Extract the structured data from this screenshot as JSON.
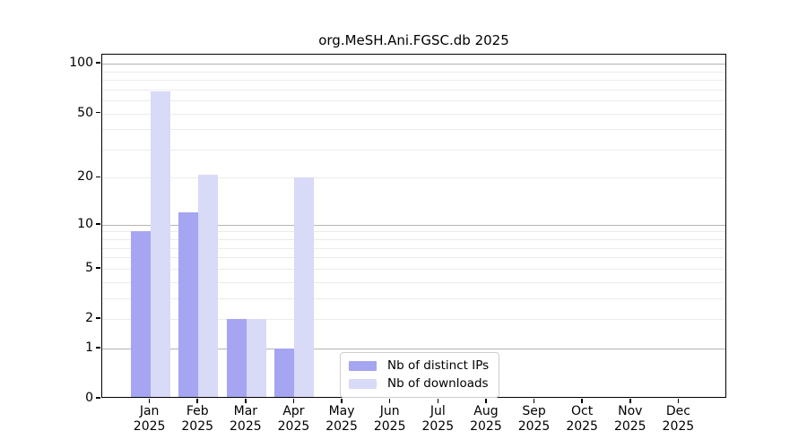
{
  "title": "org.MeSH.Ani.FGSC.db 2025",
  "legend": {
    "items": [
      {
        "label": "Nb of distinct IPs",
        "color": "#a5a5f2"
      },
      {
        "label": "Nb of downloads",
        "color": "#d9d9f8"
      }
    ]
  },
  "chart_data": {
    "type": "bar",
    "title": "org.MeSH.Ani.FGSC.db 2025",
    "xlabel": "",
    "ylabel": "",
    "x_year": "2025",
    "categories": [
      "Jan",
      "Feb",
      "Mar",
      "Apr",
      "May",
      "Jun",
      "Jul",
      "Aug",
      "Sep",
      "Oct",
      "Nov",
      "Dec"
    ],
    "series": [
      {
        "name": "Nb of distinct IPs",
        "color": "#a5a5f2",
        "values": [
          9,
          12,
          2,
          1,
          0,
          0,
          0,
          0,
          0,
          0,
          0,
          0
        ]
      },
      {
        "name": "Nb of downloads",
        "color": "#d9d9f8",
        "values": [
          68,
          21,
          2,
          20,
          0,
          0,
          0,
          0,
          0,
          0,
          0,
          0
        ]
      }
    ],
    "y_scale": "log1p",
    "y_max": 113.5,
    "ylim": [
      0,
      113.5
    ],
    "y_ticks": [
      100,
      50,
      20,
      10,
      5,
      2,
      1,
      0
    ],
    "gridlines_major": [
      1,
      10,
      100
    ],
    "gridlines_minor": [
      2,
      3,
      4,
      5,
      6,
      7,
      8,
      9,
      20,
      30,
      40,
      50,
      60,
      70,
      80,
      90
    ],
    "legend_position": "lower-center-right",
    "grid": true
  }
}
